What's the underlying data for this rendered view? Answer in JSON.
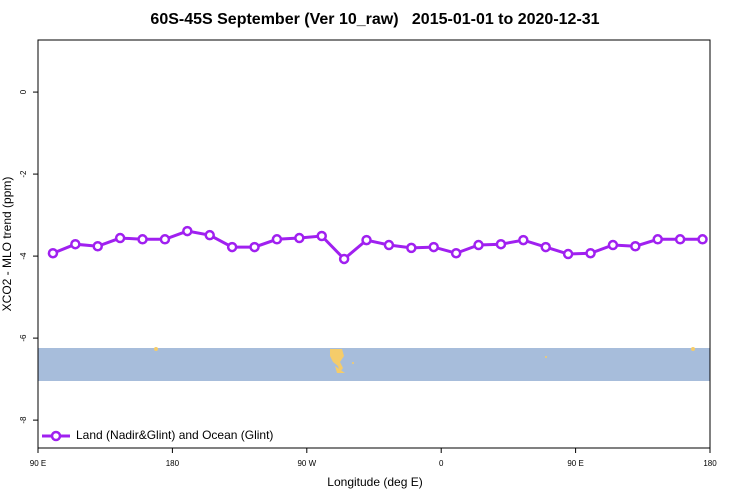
{
  "chart_data": {
    "type": "line",
    "title": "60S-45S September (Ver 10_raw)   2015-01-01 to 2020-12-31",
    "xlabel": "Longitude (deg E)",
    "ylabel": "XCO2 - MLO trend (ppm)",
    "x": [
      100,
      115,
      130,
      145,
      160,
      175,
      190,
      205,
      220,
      235,
      250,
      265,
      280,
      295,
      310,
      325,
      340,
      355,
      370,
      385,
      400,
      415,
      430,
      445,
      460,
      475,
      490,
      505,
      520,
      535
    ],
    "series": [
      {
        "name": "Land (Nadir&Glint) and Ocean (Glint)",
        "color": "#a020f0",
        "values": [
          -3.93,
          -3.71,
          -3.76,
          -3.56,
          -3.59,
          -3.59,
          -3.39,
          -3.49,
          -3.78,
          -3.78,
          -3.59,
          -3.56,
          -3.51,
          -4.07,
          -3.61,
          -3.73,
          -3.8,
          -3.78,
          -3.93,
          -3.73,
          -3.71,
          -3.61,
          -3.78,
          -3.95,
          -3.93,
          -3.73,
          -3.76,
          -3.59,
          -3.59,
          -3.59
        ]
      }
    ],
    "xlim": [
      90,
      540
    ],
    "xticks": [
      {
        "value": 90,
        "label": "90 E"
      },
      180,
      {
        "value": 270,
        "label": "90 W"
      },
      {
        "value": 360,
        "label": "0"
      },
      {
        "value": 450,
        "label": "90 E"
      },
      {
        "value": 540,
        "label": "180"
      }
    ],
    "ylim": [
      -8.68,
      1.27
    ],
    "yticks": [
      0,
      -2,
      -4,
      -6,
      -8
    ],
    "legend": "bottom-left"
  }
}
